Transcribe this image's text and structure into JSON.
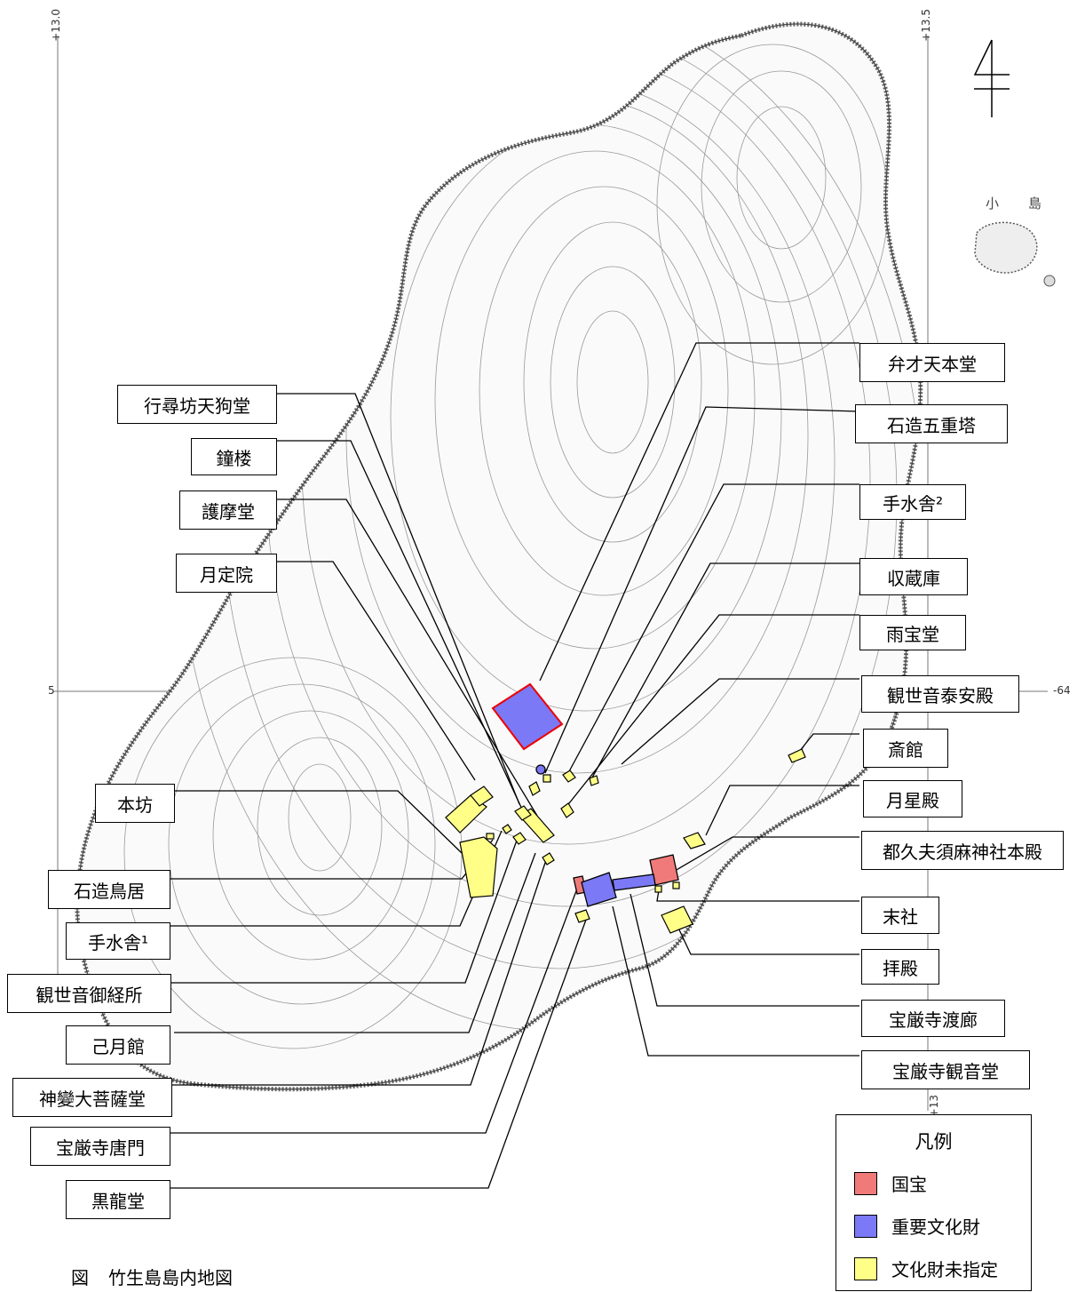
{
  "caption": {
    "prefix": "図",
    "title": "竹生島島内地図"
  },
  "legend": {
    "title": "凡例",
    "items": [
      {
        "label": "国宝",
        "color": "#f07a7a"
      },
      {
        "label": "重要文化財",
        "color": "#7b79f5"
      },
      {
        "label": "文化財未指定",
        "color": "#ffff88"
      }
    ]
  },
  "coords": {
    "top_left": "+13.0",
    "top_right": "+13.5",
    "left_mid": "5",
    "right_mid": "-64",
    "bottom_right": "+13"
  },
  "islet": {
    "label1": "小",
    "label2": "島"
  },
  "labels": {
    "benzaiten": "弁才天本堂",
    "gojuto": "石造五重塔",
    "temizu2": "手水舎²",
    "shuzoko": "収蔵庫",
    "uhodo": "雨宝堂",
    "taianden": "観世音泰安殿",
    "saikan": "斎館",
    "gesseiden": "月星殿",
    "tsukubusuma": "都久夫須麻神社本殿",
    "massha": "末社",
    "haiden": "拝殿",
    "watarirou": "宝厳寺渡廊",
    "kannondo": "宝厳寺観音堂",
    "tengudo": "行尋坊天狗堂",
    "shoro": "鐘楼",
    "gomado": "護摩堂",
    "gatsujoin": "月定院",
    "honbo": "本坊",
    "torii": "石造鳥居",
    "temizu1": "手水舎¹",
    "gokyosho": "観世音御経所",
    "kogetsukan": "己月館",
    "jinpen": "神變大菩薩堂",
    "karamon": "宝厳寺唐門",
    "kokuryudo": "黒龍堂"
  }
}
